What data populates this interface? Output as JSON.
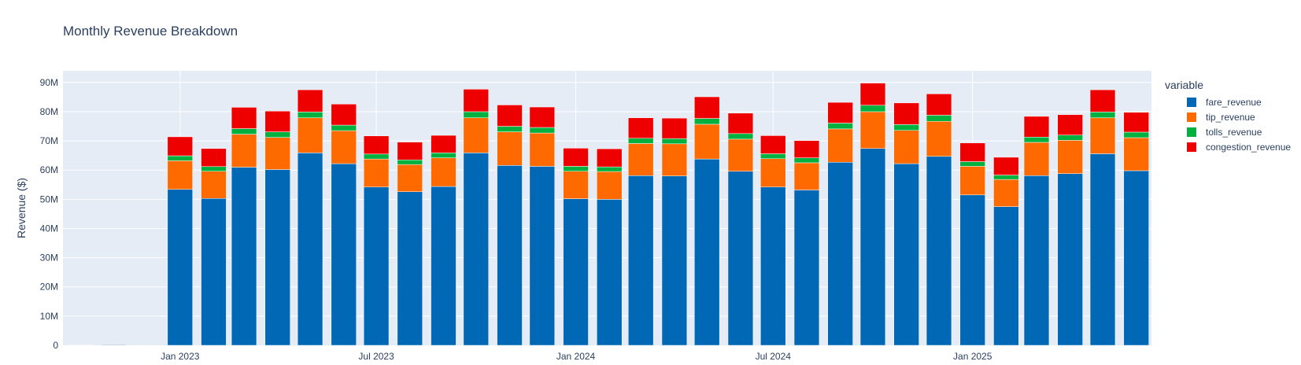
{
  "chart_data": {
    "type": "bar",
    "barmode": "stack",
    "title": "Monthly Revenue Breakdown",
    "xlabel": "",
    "ylabel": "Revenue ($)",
    "ylim": [
      0,
      94000000
    ],
    "y_ticks": [
      0,
      10000000,
      20000000,
      30000000,
      40000000,
      50000000,
      60000000,
      70000000,
      80000000,
      90000000
    ],
    "y_tick_labels": [
      "0",
      "10M",
      "20M",
      "30M",
      "40M",
      "50M",
      "60M",
      "70M",
      "80M",
      "90M"
    ],
    "x_range": [
      "2022-09-15",
      "2025-06-15"
    ],
    "x_ticks": [
      "2023-01-01",
      "2023-07-01",
      "2024-01-01",
      "2024-07-01",
      "2025-01-01"
    ],
    "x_tick_labels": [
      "Jan 2023",
      "Jul 2023",
      "Jan 2024",
      "Jul 2024",
      "Jan 2025"
    ],
    "grid": true,
    "legend_title": "variable",
    "legend_position": "right",
    "categories": [
      "2022-10-01",
      "2022-11-01",
      "2022-12-01",
      "2023-01-01",
      "2023-02-01",
      "2023-03-01",
      "2023-04-01",
      "2023-05-01",
      "2023-06-01",
      "2023-07-01",
      "2023-08-01",
      "2023-09-01",
      "2023-10-01",
      "2023-11-01",
      "2023-12-01",
      "2024-01-01",
      "2024-02-01",
      "2024-03-01",
      "2024-04-01",
      "2024-05-01",
      "2024-06-01",
      "2024-07-01",
      "2024-08-01",
      "2024-09-01",
      "2024-10-01",
      "2024-11-01",
      "2024-12-01",
      "2025-01-01",
      "2025-02-01",
      "2025-03-01",
      "2025-04-01",
      "2025-05-01",
      "2025-06-01"
    ],
    "series": [
      {
        "name": "fare_revenue",
        "color": "#0068b5",
        "values": [
          150000,
          200000,
          20000,
          53400000,
          50300000,
          61000000,
          60200000,
          65900000,
          62200000,
          54200000,
          52600000,
          54400000,
          65900000,
          61600000,
          61300000,
          50200000,
          50000000,
          58100000,
          58000000,
          63800000,
          59600000,
          54200000,
          53200000,
          62700000,
          67400000,
          62200000,
          64700000,
          51500000,
          47500000,
          58100000,
          58800000,
          65600000,
          59800000
        ]
      },
      {
        "name": "tip_revenue",
        "color": "#ff6a00",
        "values": [
          20000,
          20000,
          0,
          9800000,
          9300000,
          11300000,
          11000000,
          12000000,
          11300000,
          9600000,
          9300000,
          9800000,
          12000000,
          11500000,
          11400000,
          9400000,
          9500000,
          11000000,
          11000000,
          11900000,
          11000000,
          9700000,
          9300000,
          11400000,
          12600000,
          11400000,
          12000000,
          9800000,
          9300000,
          11400000,
          11400000,
          12300000,
          11300000
        ]
      },
      {
        "name": "tolls_revenue",
        "color": "#00b140",
        "values": [
          0,
          0,
          0,
          1700000,
          1600000,
          1900000,
          1900000,
          2000000,
          1900000,
          1700000,
          1600000,
          1700000,
          2100000,
          1900000,
          1900000,
          1700000,
          1600000,
          1800000,
          1800000,
          2000000,
          1900000,
          1700000,
          1700000,
          2000000,
          2200000,
          2000000,
          2100000,
          1600000,
          1500000,
          1800000,
          1800000,
          2000000,
          1900000
        ]
      },
      {
        "name": "congestion_revenue",
        "color": "#ef0000",
        "values": [
          0,
          0,
          0,
          6500000,
          6200000,
          7300000,
          7100000,
          7600000,
          7200000,
          6200000,
          6100000,
          6000000,
          7700000,
          7300000,
          7000000,
          6200000,
          6200000,
          7000000,
          7000000,
          7400000,
          7000000,
          6200000,
          5900000,
          7100000,
          7600000,
          7400000,
          7300000,
          6400000,
          6100000,
          7100000,
          7000000,
          7600000,
          6800000
        ]
      }
    ]
  }
}
